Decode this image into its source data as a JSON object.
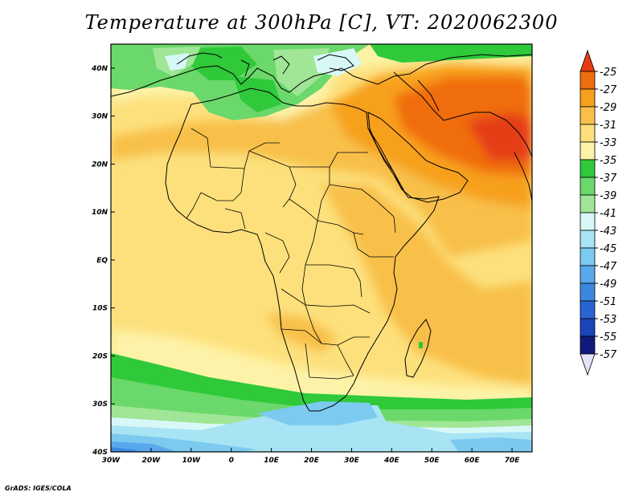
{
  "title": "Temperature at 300hPa [C], VT: 2020062300",
  "footer": "GrADS: IGES/COLA",
  "map": {
    "lon_range": [
      -30,
      75
    ],
    "lat_range": [
      -40,
      45
    ],
    "lon_ticks": [
      {
        "value": -30,
        "label": "30W"
      },
      {
        "value": -20,
        "label": "20W"
      },
      {
        "value": -10,
        "label": "10W"
      },
      {
        "value": 0,
        "label": "0"
      },
      {
        "value": 10,
        "label": "10E"
      },
      {
        "value": 20,
        "label": "20E"
      },
      {
        "value": 30,
        "label": "30E"
      },
      {
        "value": 40,
        "label": "40E"
      },
      {
        "value": 50,
        "label": "50E"
      },
      {
        "value": 60,
        "label": "60E"
      },
      {
        "value": 70,
        "label": "70E"
      }
    ],
    "lat_ticks": [
      {
        "value": 40,
        "label": "40N"
      },
      {
        "value": 30,
        "label": "30N"
      },
      {
        "value": 20,
        "label": "20N"
      },
      {
        "value": 10,
        "label": "10N"
      },
      {
        "value": 0,
        "label": "EQ"
      },
      {
        "value": -10,
        "label": "10S"
      },
      {
        "value": -20,
        "label": "20S"
      },
      {
        "value": -30,
        "label": "30S"
      },
      {
        "value": -40,
        "label": "40S"
      }
    ]
  },
  "colorbar": {
    "levels": [
      -25,
      -27,
      -29,
      -31,
      -33,
      -35,
      -37,
      -39,
      -41,
      -43,
      -45,
      -47,
      -49,
      -51,
      -53,
      -55,
      -57
    ],
    "colors": [
      "#e53c14",
      "#f06d10",
      "#f7a01e",
      "#f8c04a",
      "#fde07c",
      "#fdf3a8",
      "#2fc93a",
      "#6ad86a",
      "#a0e696",
      "#d8f8f8",
      "#a8e4f4",
      "#7ccaf0",
      "#5aa8ec",
      "#3c88e0",
      "#2a64d4",
      "#1a44b8",
      "#101a7a",
      "#e2e2f8"
    ]
  }
}
